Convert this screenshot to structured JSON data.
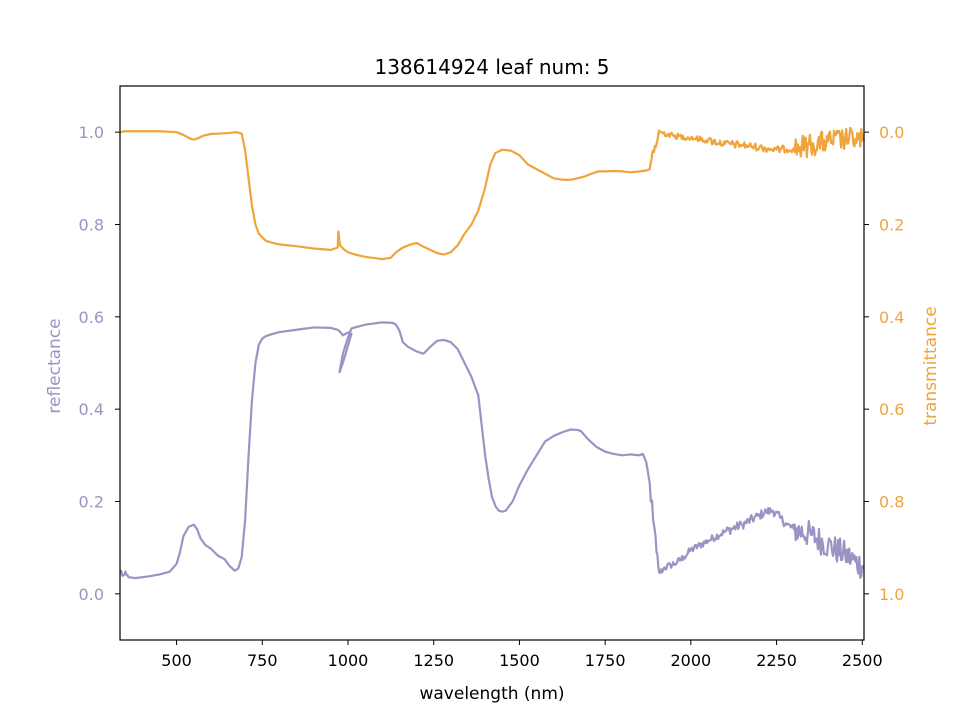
{
  "chart_data": {
    "type": "line",
    "title": "138614924 leaf num: 5",
    "xlabel": "wavelength (nm)",
    "xlim": [
      335,
      2505
    ],
    "x_ticks": [
      "500",
      "750",
      "1000",
      "1250",
      "1500",
      "1750",
      "2000",
      "2250",
      "2500"
    ],
    "colors": {
      "reflectance": "#9a94c4",
      "transmittance": "#f0a43c",
      "axis": "#000000"
    },
    "grid": false,
    "left_axis": {
      "label": "reflectance",
      "ylim": [
        -0.1,
        1.1
      ],
      "ticks": [
        "0.0",
        "0.2",
        "0.4",
        "0.6",
        "0.8",
        "1.0"
      ]
    },
    "right_axis": {
      "label": "transmittance",
      "ylim": [
        1.1,
        -0.1
      ],
      "inverted": true,
      "ticks": [
        "0.0",
        "0.2",
        "0.4",
        "0.6",
        "0.8",
        "1.0"
      ]
    },
    "series": [
      {
        "key": "reflectance",
        "axis": "left",
        "noisy_ranges": [
          [
            335,
            360,
            0.01
          ],
          [
            1880,
            1910,
            0.02
          ],
          [
            1910,
            2100,
            0.008
          ],
          [
            2100,
            2320,
            0.01
          ],
          [
            2320,
            2505,
            0.03
          ]
        ],
        "x": [
          335,
          345,
          360,
          380,
          400,
          420,
          450,
          480,
          500,
          510,
          520,
          535,
          550,
          560,
          570,
          585,
          600,
          620,
          640,
          655,
          670,
          680,
          690,
          700,
          710,
          720,
          730,
          740,
          750,
          760,
          780,
          800,
          850,
          900,
          950,
          970,
          975,
          980,
          985,
          990,
          995,
          1000,
          1005,
          1010,
          985,
          975,
          985,
          1000,
          1010,
          1050,
          1100,
          1130,
          1140,
          1150,
          1160,
          1175,
          1200,
          1220,
          1240,
          1260,
          1280,
          1300,
          1320,
          1340,
          1360,
          1380,
          1400,
          1410,
          1420,
          1430,
          1440,
          1450,
          1460,
          1480,
          1500,
          1525,
          1550,
          1575,
          1600,
          1625,
          1650,
          1670,
          1680,
          1700,
          1725,
          1750,
          1775,
          1800,
          1825,
          1850,
          1860,
          1870,
          1880,
          1890,
          1900,
          1905,
          1910,
          1920,
          1940,
          1960,
          1980,
          2000,
          2050,
          2100,
          2150,
          2200,
          2220,
          2240,
          2260,
          2280,
          2300,
          2350,
          2400,
          2450,
          2480,
          2500,
          2505
        ],
        "y": [
          0.05,
          0.04,
          0.036,
          0.034,
          0.036,
          0.038,
          0.042,
          0.048,
          0.065,
          0.09,
          0.125,
          0.145,
          0.15,
          0.14,
          0.12,
          0.105,
          0.098,
          0.083,
          0.075,
          0.06,
          0.05,
          0.055,
          0.08,
          0.16,
          0.3,
          0.42,
          0.5,
          0.54,
          0.553,
          0.558,
          0.563,
          0.567,
          0.572,
          0.577,
          0.576,
          0.572,
          0.569,
          0.565,
          0.56,
          0.562,
          0.564,
          0.566,
          0.565,
          0.563,
          0.5,
          0.48,
          0.52,
          0.555,
          0.575,
          0.583,
          0.588,
          0.587,
          0.583,
          0.57,
          0.545,
          0.535,
          0.525,
          0.52,
          0.535,
          0.548,
          0.55,
          0.545,
          0.53,
          0.5,
          0.47,
          0.43,
          0.3,
          0.25,
          0.21,
          0.19,
          0.18,
          0.178,
          0.18,
          0.2,
          0.235,
          0.27,
          0.3,
          0.33,
          0.342,
          0.35,
          0.356,
          0.355,
          0.352,
          0.335,
          0.318,
          0.308,
          0.303,
          0.3,
          0.302,
          0.3,
          0.303,
          0.285,
          0.24,
          0.16,
          0.09,
          0.06,
          0.045,
          0.055,
          0.062,
          0.068,
          0.08,
          0.095,
          0.115,
          0.135,
          0.15,
          0.17,
          0.178,
          0.18,
          0.165,
          0.15,
          0.14,
          0.128,
          0.105,
          0.085,
          0.07,
          0.06,
          0.055
        ]
      },
      {
        "key": "transmittance",
        "axis": "right",
        "noisy_ranges": [
          [
            1880,
            1910,
            0.02
          ],
          [
            1910,
            2050,
            0.006
          ],
          [
            2050,
            2320,
            0.008
          ],
          [
            2320,
            2505,
            0.025
          ]
        ],
        "x": [
          335,
          350,
          400,
          450,
          500,
          520,
          540,
          550,
          560,
          580,
          600,
          625,
          650,
          675,
          690,
          700,
          710,
          720,
          730,
          740,
          750,
          760,
          780,
          800,
          850,
          900,
          950,
          970,
          972,
          975,
          977,
          980,
          990,
          1000,
          1020,
          1050,
          1080,
          1100,
          1125,
          1140,
          1160,
          1180,
          1200,
          1220,
          1240,
          1260,
          1280,
          1300,
          1320,
          1340,
          1360,
          1380,
          1400,
          1415,
          1430,
          1450,
          1475,
          1500,
          1525,
          1550,
          1575,
          1600,
          1625,
          1650,
          1670,
          1690,
          1710,
          1730,
          1750,
          1775,
          1800,
          1825,
          1850,
          1870,
          1880,
          1885,
          1890,
          1895,
          1900,
          1905,
          1910,
          1950,
          2000,
          2050,
          2100,
          2150,
          2200,
          2250,
          2300,
          2350,
          2400,
          2450,
          2480,
          2500,
          2505
        ],
        "y": [
          0.0,
          -0.002,
          -0.002,
          -0.002,
          0.0,
          0.006,
          0.014,
          0.016,
          0.014,
          0.007,
          0.004,
          0.003,
          0.002,
          0.0,
          0.003,
          0.04,
          0.1,
          0.16,
          0.2,
          0.22,
          0.228,
          0.235,
          0.24,
          0.243,
          0.247,
          0.252,
          0.255,
          0.25,
          0.215,
          0.235,
          0.245,
          0.248,
          0.255,
          0.26,
          0.265,
          0.27,
          0.273,
          0.275,
          0.272,
          0.26,
          0.25,
          0.244,
          0.24,
          0.248,
          0.255,
          0.262,
          0.265,
          0.26,
          0.245,
          0.22,
          0.2,
          0.17,
          0.12,
          0.07,
          0.045,
          0.038,
          0.04,
          0.05,
          0.07,
          0.08,
          0.09,
          0.1,
          0.103,
          0.103,
          0.1,
          0.096,
          0.09,
          0.085,
          0.085,
          0.084,
          0.085,
          0.087,
          0.085,
          0.083,
          0.08,
          0.06,
          0.04,
          0.03,
          0.025,
          0.005,
          0.0,
          0.008,
          0.012,
          0.018,
          0.025,
          0.028,
          0.033,
          0.038,
          0.035,
          0.028,
          0.02,
          0.015,
          0.015,
          0.018,
          0.018
        ]
      }
    ]
  }
}
